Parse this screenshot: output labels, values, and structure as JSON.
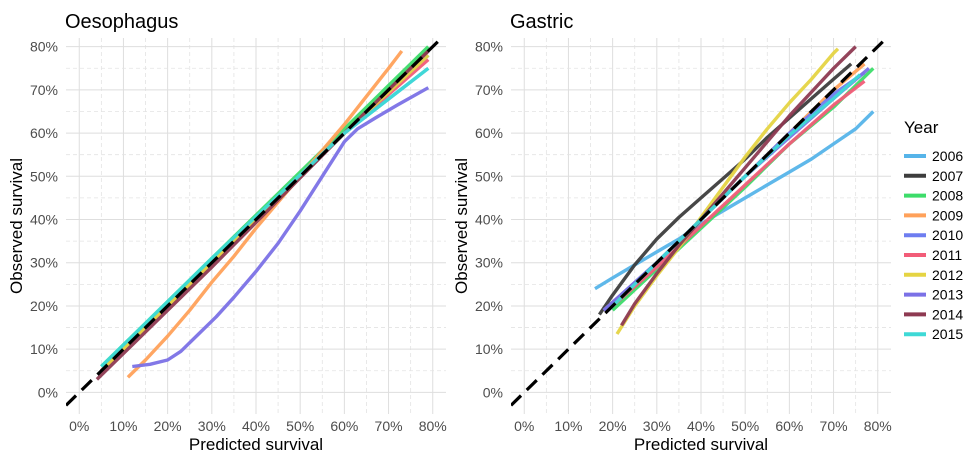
{
  "chart_data": [
    {
      "type": "line",
      "title": "Oesophagus",
      "xlabel": "Predicted survival",
      "ylabel": "Observed survival",
      "xlim": [
        -0.03,
        0.83
      ],
      "ylim": [
        -0.05,
        0.82
      ],
      "xticks": [
        0,
        0.1,
        0.2,
        0.3,
        0.4,
        0.5,
        0.6,
        0.7,
        0.8
      ],
      "xtick_labels": [
        "0%",
        "10%",
        "20%",
        "30%",
        "40%",
        "50%",
        "60%",
        "70%",
        "80%"
      ],
      "yticks": [
        0,
        0.1,
        0.2,
        0.3,
        0.4,
        0.5,
        0.6,
        0.7,
        0.8
      ],
      "ytick_labels": [
        "0%",
        "10%",
        "20%",
        "30%",
        "40%",
        "50%",
        "60%",
        "70%",
        "80%"
      ],
      "grid": true,
      "reference_line": {
        "x": [
          -0.03,
          0.83
        ],
        "y": [
          -0.03,
          0.83
        ],
        "style": "dashed",
        "color": "#000000"
      },
      "series": [
        {
          "name": "2006",
          "x": [
            0.05,
            0.3,
            0.6,
            0.79
          ],
          "y": [
            0.05,
            0.3,
            0.6,
            0.75
          ]
        },
        {
          "name": "2007",
          "x": [
            0.05,
            0.3,
            0.6,
            0.79
          ],
          "y": [
            0.05,
            0.3,
            0.6,
            0.79
          ]
        },
        {
          "name": "2008",
          "x": [
            0.05,
            0.3,
            0.6,
            0.79
          ],
          "y": [
            0.06,
            0.31,
            0.61,
            0.8
          ]
        },
        {
          "name": "2009",
          "x": [
            0.11,
            0.15,
            0.2,
            0.25,
            0.3,
            0.35,
            0.4,
            0.45,
            0.5,
            0.55,
            0.6,
            0.65,
            0.7,
            0.73
          ],
          "y": [
            0.035,
            0.075,
            0.13,
            0.19,
            0.255,
            0.315,
            0.38,
            0.44,
            0.5,
            0.56,
            0.62,
            0.685,
            0.75,
            0.79
          ]
        },
        {
          "name": "2010",
          "x": [
            0.05,
            0.3,
            0.6,
            0.79
          ],
          "y": [
            0.05,
            0.3,
            0.6,
            0.78
          ]
        },
        {
          "name": "2011",
          "x": [
            0.05,
            0.3,
            0.6,
            0.79
          ],
          "y": [
            0.05,
            0.3,
            0.6,
            0.77
          ]
        },
        {
          "name": "2012",
          "x": [
            0.05,
            0.3,
            0.6,
            0.79
          ],
          "y": [
            0.05,
            0.3,
            0.6,
            0.78
          ]
        },
        {
          "name": "2013",
          "x": [
            0.12,
            0.16,
            0.2,
            0.23,
            0.27,
            0.31,
            0.35,
            0.4,
            0.45,
            0.5,
            0.55,
            0.6,
            0.63,
            0.67,
            0.72,
            0.79
          ],
          "y": [
            0.06,
            0.065,
            0.075,
            0.095,
            0.135,
            0.175,
            0.22,
            0.28,
            0.345,
            0.42,
            0.5,
            0.58,
            0.61,
            0.635,
            0.665,
            0.705
          ]
        },
        {
          "name": "2014",
          "x": [
            0.04,
            0.3,
            0.6,
            0.79
          ],
          "y": [
            0.03,
            0.29,
            0.6,
            0.79
          ]
        },
        {
          "name": "2015",
          "x": [
            0.05,
            0.3,
            0.6,
            0.79
          ],
          "y": [
            0.06,
            0.31,
            0.6,
            0.75
          ]
        }
      ]
    },
    {
      "type": "line",
      "title": "Gastric",
      "xlabel": "Predicted survival",
      "ylabel": "Observed survival",
      "xlim": [
        -0.03,
        0.83
      ],
      "ylim": [
        -0.05,
        0.82
      ],
      "xticks": [
        0,
        0.1,
        0.2,
        0.3,
        0.4,
        0.5,
        0.6,
        0.7,
        0.8
      ],
      "xtick_labels": [
        "0%",
        "10%",
        "20%",
        "30%",
        "40%",
        "50%",
        "60%",
        "70%",
        "80%"
      ],
      "yticks": [
        0,
        0.1,
        0.2,
        0.3,
        0.4,
        0.5,
        0.6,
        0.7,
        0.8
      ],
      "ytick_labels": [
        "0%",
        "10%",
        "20%",
        "30%",
        "40%",
        "50%",
        "60%",
        "70%",
        "80%"
      ],
      "grid": true,
      "reference_line": {
        "x": [
          -0.03,
          0.83
        ],
        "y": [
          -0.03,
          0.83
        ],
        "style": "dashed",
        "color": "#000000"
      },
      "series": [
        {
          "name": "2006",
          "x": [
            0.16,
            0.2,
            0.25,
            0.3,
            0.35,
            0.4,
            0.45,
            0.5,
            0.55,
            0.6,
            0.65,
            0.7,
            0.75,
            0.79
          ],
          "y": [
            0.24,
            0.265,
            0.295,
            0.325,
            0.355,
            0.39,
            0.42,
            0.45,
            0.48,
            0.51,
            0.54,
            0.575,
            0.61,
            0.65
          ]
        },
        {
          "name": "2007",
          "x": [
            0.17,
            0.2,
            0.25,
            0.3,
            0.35,
            0.4,
            0.45,
            0.5,
            0.55,
            0.6,
            0.65,
            0.7,
            0.74
          ],
          "y": [
            0.18,
            0.225,
            0.295,
            0.355,
            0.405,
            0.45,
            0.495,
            0.54,
            0.59,
            0.635,
            0.68,
            0.725,
            0.76
          ]
        },
        {
          "name": "2008",
          "x": [
            0.2,
            0.3,
            0.4,
            0.5,
            0.6,
            0.7,
            0.79
          ],
          "y": [
            0.19,
            0.285,
            0.38,
            0.475,
            0.575,
            0.66,
            0.75
          ]
        },
        {
          "name": "2009",
          "x": [
            0.18,
            0.3,
            0.4,
            0.5,
            0.6,
            0.7,
            0.77
          ],
          "y": [
            0.19,
            0.3,
            0.4,
            0.5,
            0.6,
            0.7,
            0.76
          ]
        },
        {
          "name": "2010",
          "x": [
            0.18,
            0.3,
            0.4,
            0.5,
            0.6,
            0.7,
            0.77
          ],
          "y": [
            0.19,
            0.3,
            0.4,
            0.5,
            0.6,
            0.69,
            0.74
          ]
        },
        {
          "name": "2011",
          "x": [
            0.2,
            0.3,
            0.4,
            0.5,
            0.6,
            0.7,
            0.77
          ],
          "y": [
            0.2,
            0.29,
            0.385,
            0.48,
            0.575,
            0.665,
            0.72
          ]
        },
        {
          "name": "2012",
          "x": [
            0.21,
            0.25,
            0.3,
            0.35,
            0.4,
            0.45,
            0.5,
            0.55,
            0.6,
            0.65,
            0.7,
            0.71
          ],
          "y": [
            0.135,
            0.2,
            0.27,
            0.335,
            0.405,
            0.475,
            0.545,
            0.61,
            0.67,
            0.725,
            0.785,
            0.795
          ]
        },
        {
          "name": "2013",
          "x": [
            0.18,
            0.3,
            0.4,
            0.5,
            0.6,
            0.7,
            0.78
          ],
          "y": [
            0.19,
            0.3,
            0.4,
            0.5,
            0.59,
            0.68,
            0.75
          ]
        },
        {
          "name": "2014",
          "x": [
            0.22,
            0.25,
            0.3,
            0.35,
            0.4,
            0.45,
            0.5,
            0.55,
            0.6,
            0.65,
            0.7,
            0.75
          ],
          "y": [
            0.155,
            0.205,
            0.275,
            0.34,
            0.4,
            0.46,
            0.52,
            0.58,
            0.64,
            0.695,
            0.75,
            0.8
          ]
        },
        {
          "name": "2015",
          "x": [
            0.19,
            0.3,
            0.4,
            0.5,
            0.6,
            0.7,
            0.76
          ],
          "y": [
            0.19,
            0.3,
            0.4,
            0.5,
            0.595,
            0.68,
            0.735
          ]
        }
      ]
    }
  ],
  "legend": {
    "title": "Year",
    "position": "right",
    "items": [
      {
        "label": "2006",
        "color": "#56B4E9"
      },
      {
        "label": "2007",
        "color": "#3d3d3d"
      },
      {
        "label": "2008",
        "color": "#3DDC6A"
      },
      {
        "label": "2009",
        "color": "#FFA15A"
      },
      {
        "label": "2010",
        "color": "#6E7DF0"
      },
      {
        "label": "2011",
        "color": "#F25C78"
      },
      {
        "label": "2012",
        "color": "#E5D443"
      },
      {
        "label": "2013",
        "color": "#7B71E6"
      },
      {
        "label": "2014",
        "color": "#8E3A52"
      },
      {
        "label": "2015",
        "color": "#3ED9D6"
      }
    ]
  }
}
